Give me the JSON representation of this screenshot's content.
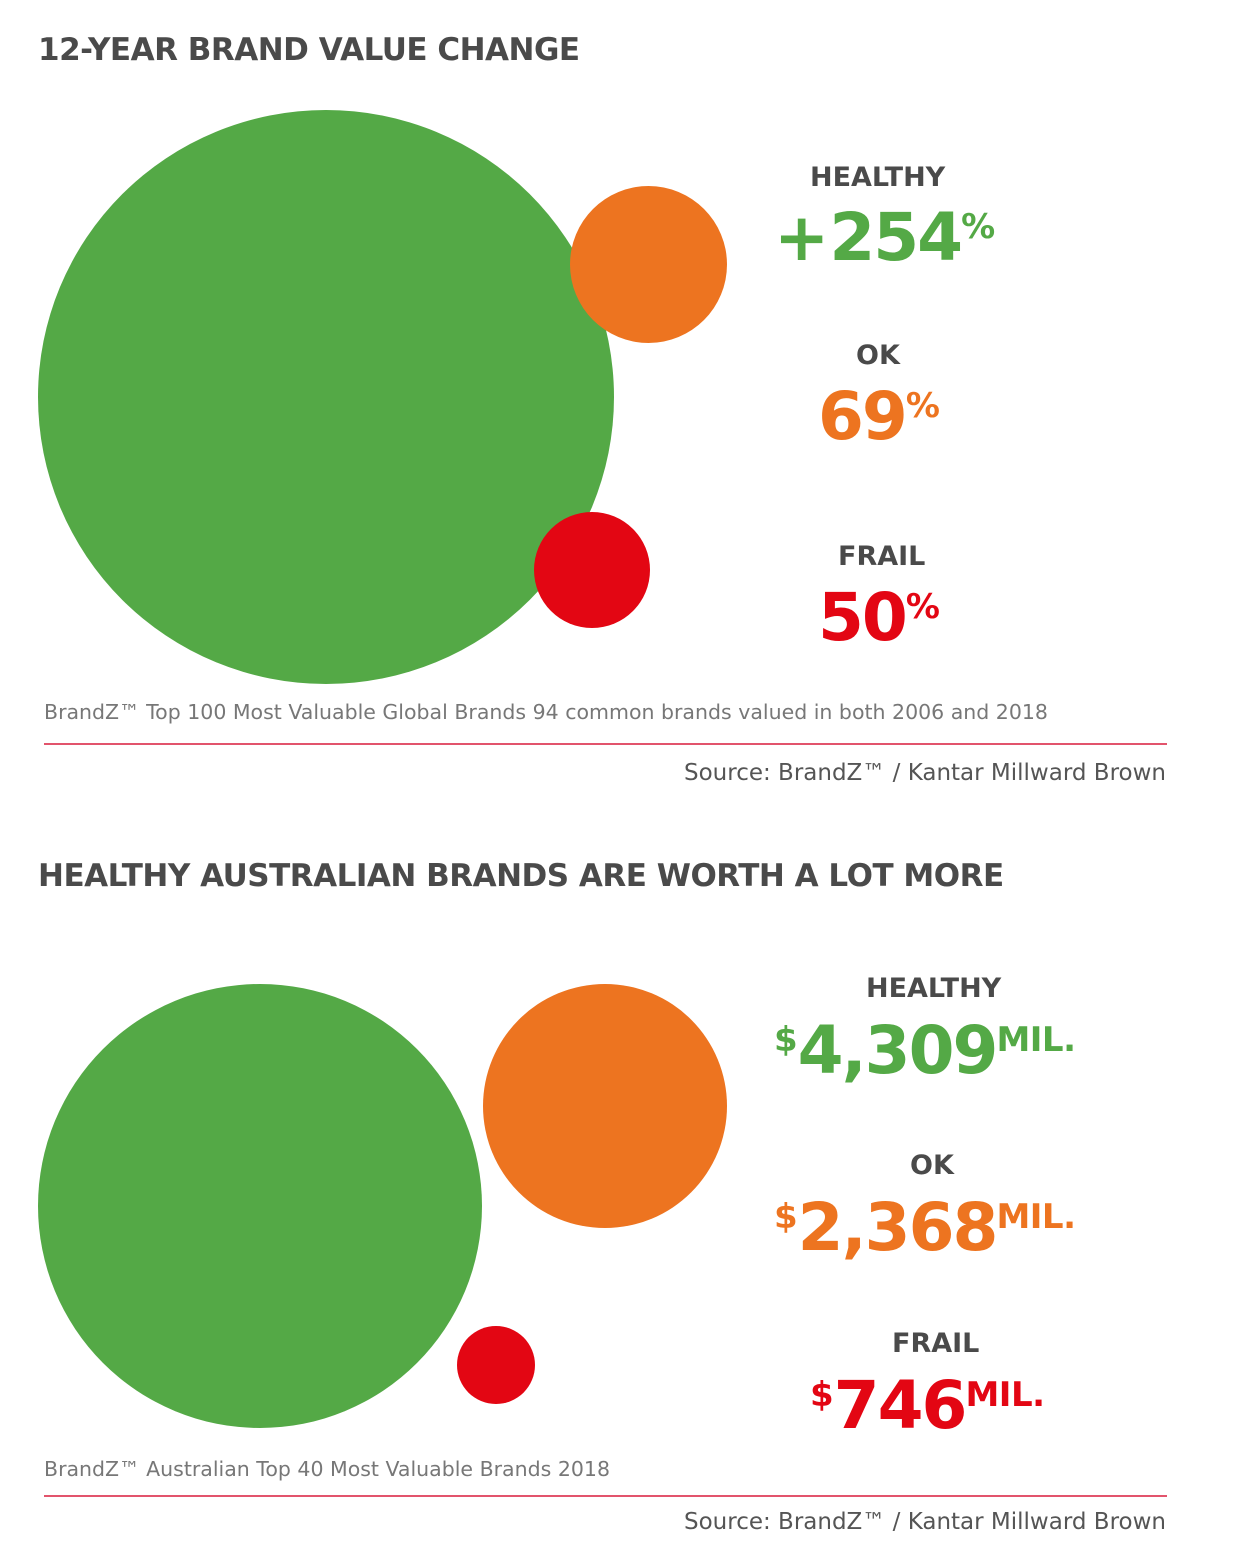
{
  "colors": {
    "healthy": "#54a946",
    "ok": "#ed7420",
    "frail": "#e30613",
    "title": "#4a4a4a",
    "rule": "#e2546c"
  },
  "chart_data": [
    {
      "type": "bubble",
      "title": "12-YEAR BRAND VALUE CHANGE",
      "categories": [
        "HEALTHY",
        "OK",
        "FRAIL"
      ],
      "values": [
        254,
        69,
        50
      ],
      "value_labels": [
        {
          "prefix": "+",
          "number": "254",
          "unit": "%"
        },
        {
          "prefix": "",
          "number": "69",
          "unit": "%"
        },
        {
          "prefix": "",
          "number": "50",
          "unit": "%"
        }
      ],
      "note": "BrandZ™ Top 100 Most Valuable Global Brands 94 common brands valued in both 2006 and 2018",
      "source": "Source: BrandZ™ / Kantar Millward Brown"
    },
    {
      "type": "bubble",
      "title": "HEALTHY AUSTRALIAN BRANDS ARE WORTH A LOT MORE",
      "categories": [
        "HEALTHY",
        "OK",
        "FRAIL"
      ],
      "values": [
        4309,
        2368,
        746
      ],
      "value_labels": [
        {
          "prefix": "$",
          "number": "4,309",
          "unit": "MIL."
        },
        {
          "prefix": "$",
          "number": "2,368",
          "unit": "MIL."
        },
        {
          "prefix": "$",
          "number": "746",
          "unit": "MIL."
        }
      ],
      "note": "BrandZ™ Australian Top 40 Most Valuable Brands 2018",
      "source": "Source: BrandZ™ / Kantar Millward Brown"
    }
  ]
}
